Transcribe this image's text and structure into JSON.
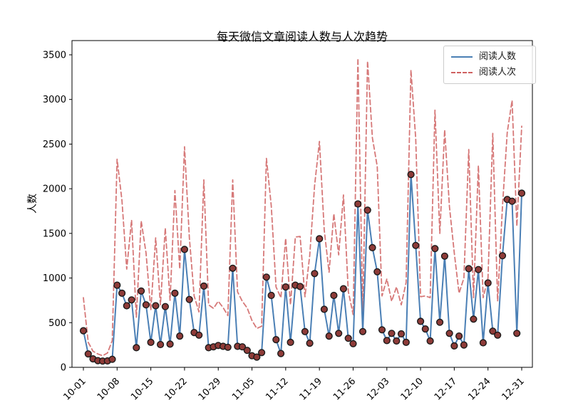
{
  "colors": {
    "people_line": "#4a7fb5",
    "times_line": "#cf6060",
    "marker_fill": "#8e3b38",
    "marker_edge": "#1a1a1a",
    "axis": "#000000",
    "legend_border": "#cccccc"
  },
  "chart_data": {
    "type": "line",
    "title": "每天微信文章阅读人数与人次趋势",
    "xlabel": "",
    "ylabel": "人数",
    "ylim": [
      0,
      3660
    ],
    "grid": false,
    "legend_position": "upper right",
    "y_ticks": [
      0,
      500,
      1000,
      1500,
      2000,
      2500,
      3000,
      3500
    ],
    "x_tick_positions": [
      0,
      7,
      14,
      21,
      28,
      35,
      42,
      49,
      56,
      63,
      70,
      77,
      84,
      91
    ],
    "x_tick_labels": [
      "10-01",
      "10-08",
      "10-15",
      "10-22",
      "10-29",
      "11-05",
      "11-12",
      "11-19",
      "11-26",
      "12-03",
      "12-10",
      "12-17",
      "12-24",
      "12-31"
    ],
    "dates": [
      "10-01",
      "10-02",
      "10-03",
      "10-04",
      "10-05",
      "10-06",
      "10-07",
      "10-08",
      "10-09",
      "10-10",
      "10-11",
      "10-12",
      "10-13",
      "10-14",
      "10-15",
      "10-16",
      "10-17",
      "10-18",
      "10-19",
      "10-20",
      "10-21",
      "10-22",
      "10-23",
      "10-24",
      "10-25",
      "10-26",
      "10-27",
      "10-28",
      "10-29",
      "10-30",
      "10-31",
      "11-01",
      "11-02",
      "11-03",
      "11-04",
      "11-05",
      "11-06",
      "11-07",
      "11-08",
      "11-09",
      "11-10",
      "11-11",
      "11-12",
      "11-13",
      "11-14",
      "11-15",
      "11-16",
      "11-17",
      "11-18",
      "11-19",
      "11-20",
      "11-21",
      "11-22",
      "11-23",
      "11-24",
      "11-25",
      "11-26",
      "11-27",
      "11-28",
      "11-29",
      "11-30",
      "12-01",
      "12-02",
      "12-03",
      "12-04",
      "12-05",
      "12-06",
      "12-07",
      "12-08",
      "12-09",
      "12-10",
      "12-11",
      "12-12",
      "12-13",
      "12-14",
      "12-15",
      "12-16",
      "12-17",
      "12-18",
      "12-19",
      "12-20",
      "12-21",
      "12-22",
      "12-23",
      "12-24",
      "12-25",
      "12-26",
      "12-27",
      "12-28",
      "12-29",
      "12-30",
      "12-31"
    ],
    "series": [
      {
        "name": "阅读人数",
        "line_style": "solid",
        "color": "#4a7fb5",
        "marker": "circle",
        "marker_color": "#8e3b38",
        "values": [
          410,
          150,
          95,
          75,
          70,
          72,
          90,
          920,
          830,
          690,
          755,
          220,
          855,
          700,
          280,
          690,
          255,
          680,
          260,
          830,
          350,
          1320,
          760,
          390,
          360,
          910,
          220,
          230,
          245,
          235,
          225,
          1110,
          235,
          230,
          190,
          130,
          115,
          165,
          1010,
          805,
          310,
          155,
          900,
          280,
          920,
          905,
          400,
          270,
          1050,
          1440,
          650,
          350,
          805,
          380,
          880,
          325,
          265,
          1830,
          400,
          1760,
          1340,
          1070,
          420,
          300,
          380,
          295,
          375,
          280,
          2160,
          1365,
          515,
          430,
          295,
          1330,
          505,
          1245,
          380,
          240,
          350,
          250,
          1105,
          540,
          1095,
          275,
          945,
          405,
          360,
          1250,
          1880,
          1860,
          380,
          1950
        ]
      },
      {
        "name": "阅读人次",
        "line_style": "dashed",
        "color": "#cf6060",
        "marker": "none",
        "values": [
          780,
          280,
          180,
          150,
          130,
          160,
          300,
          2330,
          1870,
          1100,
          1650,
          560,
          1640,
          1280,
          640,
          1450,
          700,
          1560,
          750,
          1980,
          1100,
          2470,
          1450,
          800,
          620,
          2100,
          700,
          660,
          740,
          670,
          580,
          2100,
          845,
          740,
          665,
          525,
          435,
          460,
          2340,
          1810,
          900,
          780,
          1445,
          700,
          1460,
          1465,
          790,
          1255,
          2035,
          2530,
          1540,
          1065,
          1720,
          1260,
          1930,
          850,
          590,
          3460,
          600,
          3430,
          2570,
          2250,
          800,
          990,
          740,
          900,
          700,
          950,
          3330,
          2560,
          790,
          800,
          780,
          2880,
          1500,
          2660,
          1800,
          1280,
          830,
          1000,
          2440,
          780,
          2260,
          780,
          1000,
          2620,
          740,
          1800,
          2630,
          2990,
          1580,
          2700
        ]
      }
    ]
  }
}
